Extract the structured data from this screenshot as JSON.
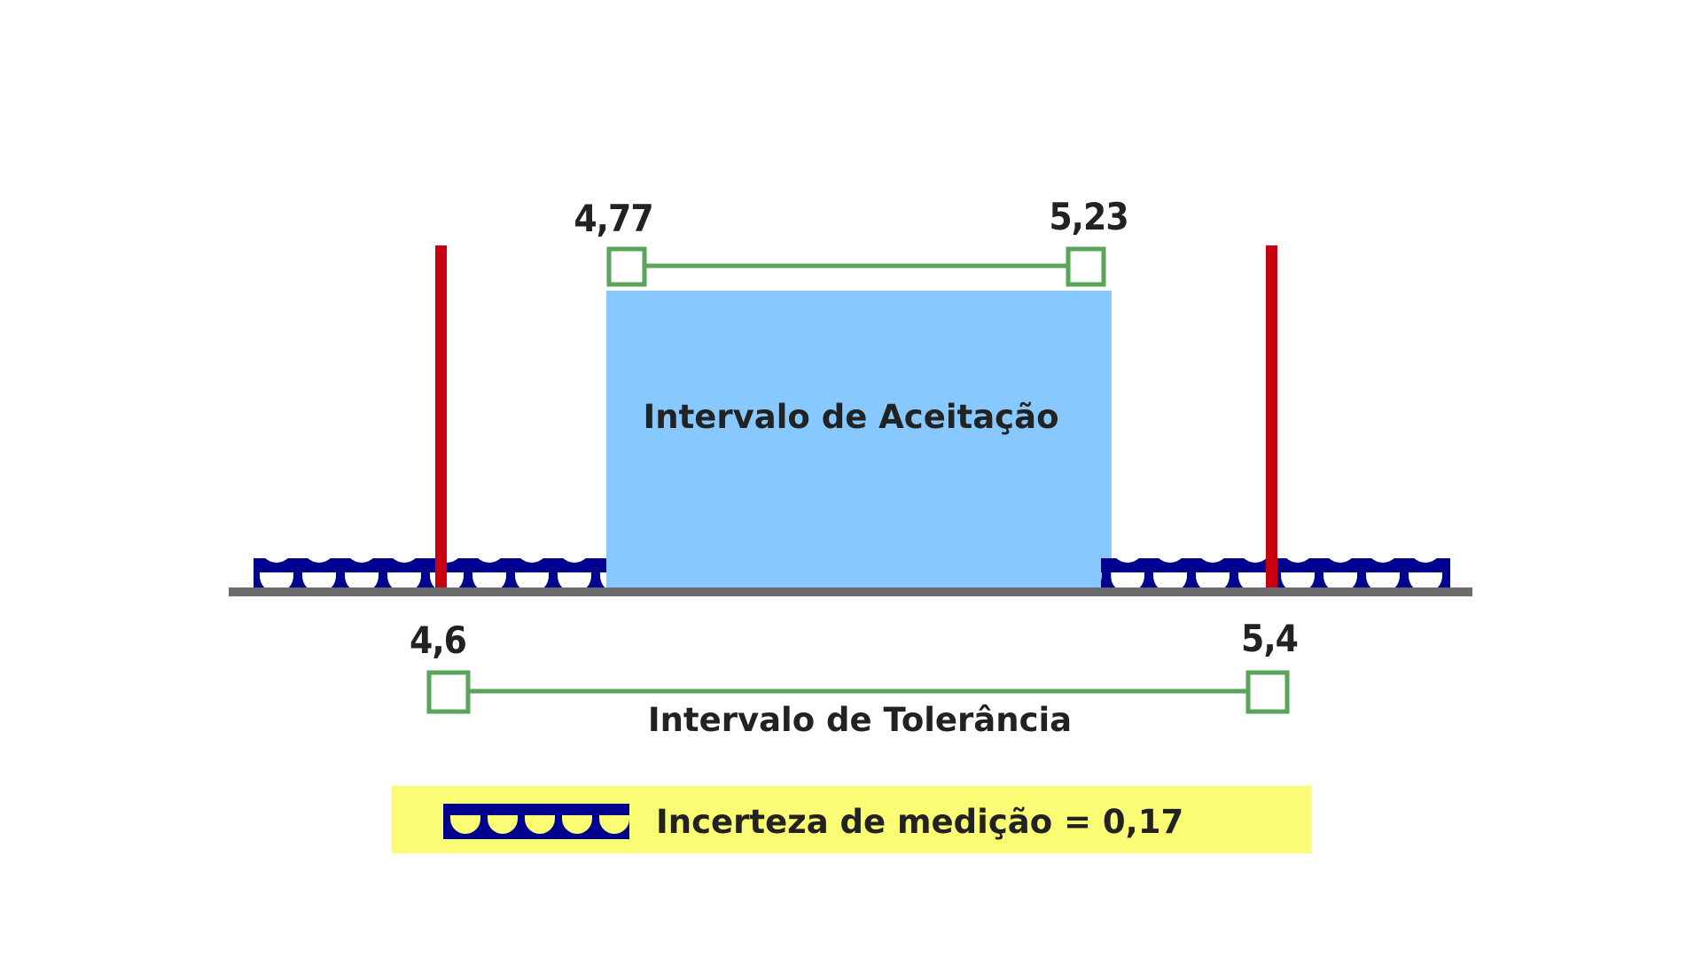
{
  "acceptance": {
    "lower": "4,77",
    "upper": "5,23",
    "label": "Intervalo de Aceitação"
  },
  "tolerance": {
    "lower": "4,6",
    "upper": "5,4",
    "label": "Intervalo de Tolerância"
  },
  "legend": {
    "text": "Incerteza de medição = 0,17"
  },
  "colors": {
    "acceptance_fill": "#87c9ff",
    "limit_line": "#c8000f",
    "interval_marker": "#5aa55a",
    "uncertainty_wave": "#00008f",
    "axis": "#6b6b6b",
    "legend_background": "#fafc73",
    "text": "#222222"
  },
  "icons": {
    "uncertainty": "wave-pattern-icon"
  }
}
